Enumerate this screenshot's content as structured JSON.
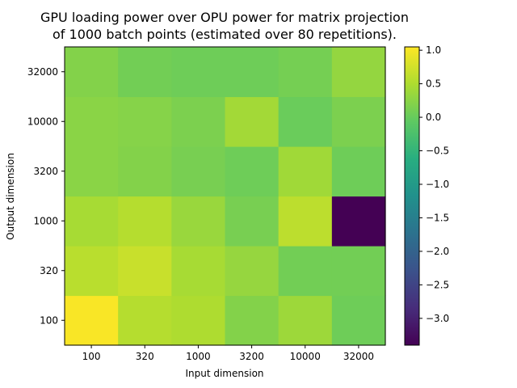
{
  "chart_data": {
    "type": "heatmap",
    "title_lines": [
      "GPU loading power over OPU power for matrix projection",
      "of 1000 batch points (estimated over 80 repetitions)."
    ],
    "xlabel": "Input dimension",
    "ylabel": "Output dimension",
    "x_categories": [
      "100",
      "320",
      "1000",
      "3200",
      "10000",
      "32000"
    ],
    "y_categories": [
      "100",
      "320",
      "1000",
      "3200",
      "10000",
      "32000"
    ],
    "values": [
      [
        1.02,
        0.55,
        0.5,
        0.2,
        0.38,
        0.05
      ],
      [
        0.58,
        0.68,
        0.45,
        0.33,
        0.08,
        0.08
      ],
      [
        0.45,
        0.55,
        0.35,
        0.12,
        0.6,
        -3.4
      ],
      [
        0.25,
        0.2,
        0.12,
        0.05,
        0.4,
        0.05
      ],
      [
        0.25,
        0.22,
        0.15,
        0.42,
        0.02,
        0.15
      ],
      [
        0.2,
        0.08,
        0.05,
        0.05,
        0.1,
        0.32
      ]
    ],
    "value_layout": "values[i][j] = value at Output dimension y_categories[i], Input dimension x_categories[j]",
    "colormap": "viridis",
    "colorbar": {
      "vmin": -3.4,
      "vmax": 1.05,
      "ticks": [
        1.0,
        0.5,
        0.0,
        -0.5,
        -1.0,
        -1.5,
        -2.0,
        -2.5,
        -3.0
      ],
      "tick_labels": [
        "1.0",
        "0.5",
        "0.0",
        "−0.5",
        "−1.0",
        "−1.5",
        "−2.0",
        "−2.5",
        "−3.0"
      ]
    }
  }
}
